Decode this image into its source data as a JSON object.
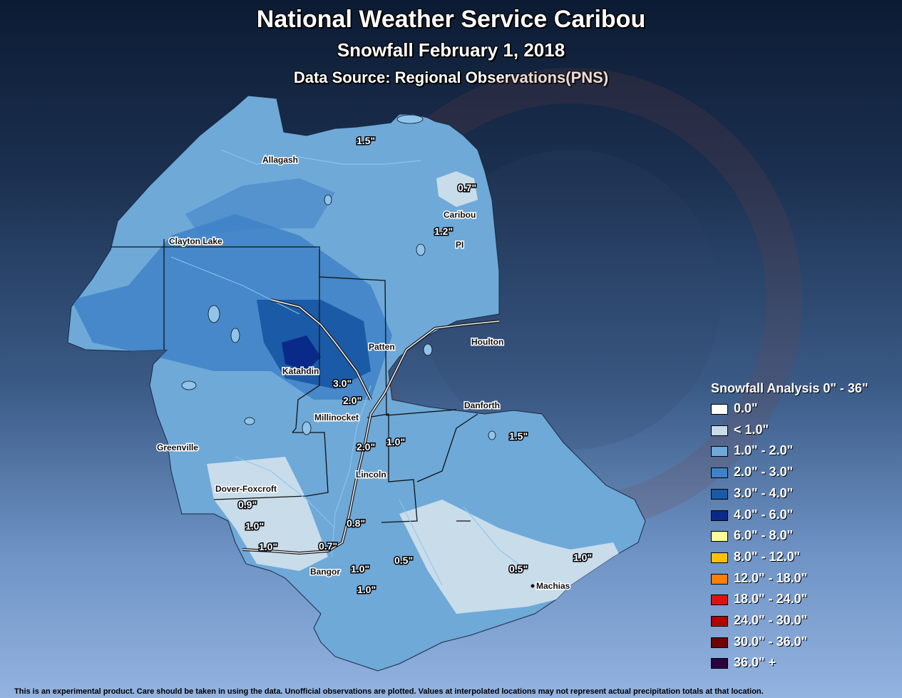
{
  "header": {
    "title": "National Weather Service Caribou",
    "subtitle": "Snowfall February 1, 2018",
    "source": "Data Source: Regional Observations(PNS)"
  },
  "places": {
    "allagash": "Allagash",
    "caribou": "Caribou",
    "pi": "PI",
    "clayton_lake": "Clayton Lake",
    "patten": "Patten",
    "houlton": "Houlton",
    "katahdin": "Katahdin",
    "millinocket": "Millinocket",
    "danforth": "Danforth",
    "greenville": "Greenville",
    "lincoln": "Lincoln",
    "dover_foxcroft": "Dover-Foxcroft",
    "bangor": "Bangor",
    "machias": "Machias"
  },
  "observations": [
    {
      "id": "obs-1",
      "value": "1.5\""
    },
    {
      "id": "obs-2",
      "value": "0.7\""
    },
    {
      "id": "obs-3",
      "value": "1.2\""
    },
    {
      "id": "obs-4",
      "value": "3.0\""
    },
    {
      "id": "obs-5",
      "value": "2.0\""
    },
    {
      "id": "obs-6",
      "value": "1.0\""
    },
    {
      "id": "obs-7",
      "value": "2.0\""
    },
    {
      "id": "obs-8",
      "value": "1.5\""
    },
    {
      "id": "obs-9",
      "value": "0.9\""
    },
    {
      "id": "obs-10",
      "value": "1.0\""
    },
    {
      "id": "obs-11",
      "value": "1.0\""
    },
    {
      "id": "obs-12",
      "value": "0.8\""
    },
    {
      "id": "obs-13",
      "value": "0.7\""
    },
    {
      "id": "obs-14",
      "value": "1.0\""
    },
    {
      "id": "obs-15",
      "value": "0.5\""
    },
    {
      "id": "obs-16",
      "value": "1.0\""
    },
    {
      "id": "obs-17",
      "value": "0.5\""
    },
    {
      "id": "obs-18",
      "value": "1.0\""
    }
  ],
  "legend": {
    "title": "Snowfall Analysis 0\" - 36\"",
    "items": [
      {
        "label": "0.0\"",
        "color": "#ffffff"
      },
      {
        "label": "< 1.0\"",
        "color": "#c8dcea"
      },
      {
        "label": "1.0\" - 2.0\"",
        "color": "#6ea9d8"
      },
      {
        "label": "2.0\" - 3.0\"",
        "color": "#3f82c7"
      },
      {
        "label": "3.0\" - 4.0\"",
        "color": "#1a5aa6"
      },
      {
        "label": "4.0\" - 6.0\"",
        "color": "#0a2a8a"
      },
      {
        "label": "6.0\" - 8.0\"",
        "color": "#ffff99"
      },
      {
        "label": "8.0\" - 12.0\"",
        "color": "#ffc000"
      },
      {
        "label": "12.0\" - 18.0\"",
        "color": "#ff8000"
      },
      {
        "label": "18.0\" - 24.0\"",
        "color": "#e01010"
      },
      {
        "label": "24.0\" - 30.0\"",
        "color": "#b00000"
      },
      {
        "label": "30.0\" - 36.0\"",
        "color": "#700000"
      },
      {
        "label": "36.0\" +",
        "color": "#2a0040"
      }
    ]
  },
  "footer": "This is an experimental product. Care should be taken in using the data. Unofficial observations are plotted. Values at interpolated locations may not represent actual precipitation totals at that location."
}
